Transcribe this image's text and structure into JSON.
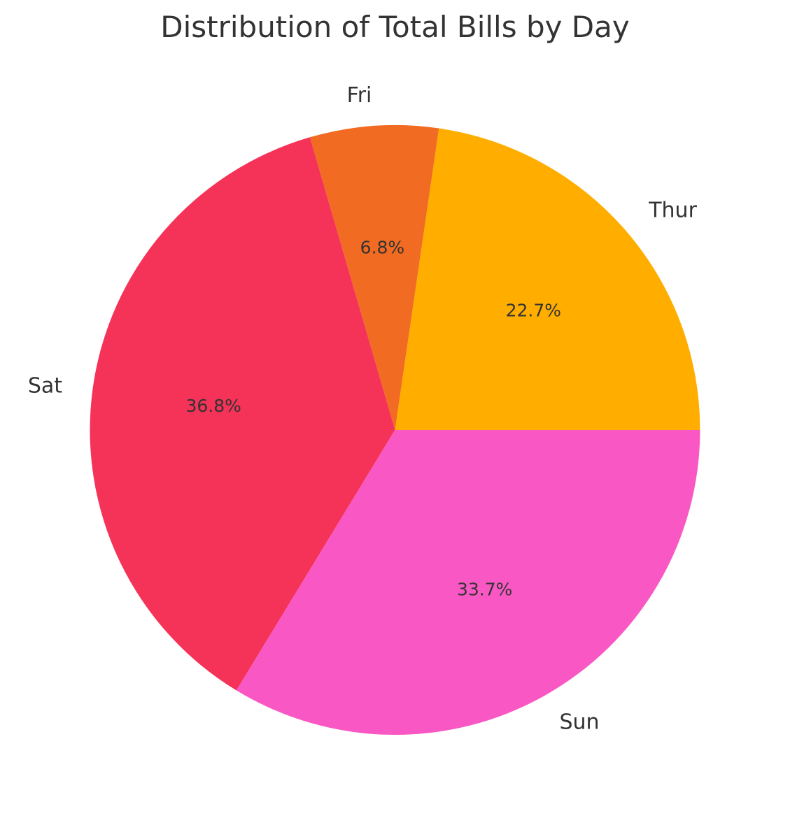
{
  "chart_data": {
    "type": "pie",
    "title": "Distribution of Total Bills by Day",
    "categories": [
      "Thur",
      "Fri",
      "Sat",
      "Sun"
    ],
    "values": [
      22.7,
      6.8,
      36.8,
      33.7
    ],
    "value_labels": [
      "22.7%",
      "6.8%",
      "36.8%",
      "33.7%"
    ],
    "colors": [
      "#FFAE00",
      "#F26B22",
      "#F53257",
      "#F958C4"
    ],
    "start_angle": 0,
    "direction": "counterclockwise"
  }
}
